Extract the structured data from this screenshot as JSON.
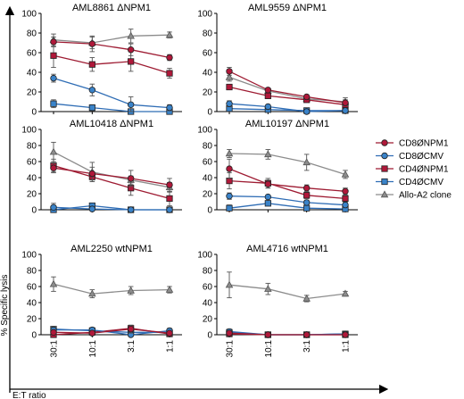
{
  "figure": {
    "ylabel": "% Specific lysis",
    "xlabel": "E:T ratio",
    "colors": {
      "red": "#9e1b32",
      "redFill": "#b0183a",
      "blue": "#2f6db5",
      "blueFill": "#3a83c9",
      "gray": "#8c8c8c"
    },
    "legend": [
      {
        "name": "CD8ØNPM1",
        "marker": "circle",
        "color": "#9e1b32"
      },
      {
        "name": "CD8ØCMV",
        "marker": "circle",
        "color": "#2f6db5"
      },
      {
        "name": "CD4ØNPM1",
        "marker": "square",
        "color": "#9e1b32"
      },
      {
        "name": "CD4ØCMV",
        "marker": "square",
        "color": "#2f6db5"
      },
      {
        "name": "Allo-A2 clone",
        "marker": "triangle",
        "color": "#8c8c8c"
      }
    ]
  },
  "chart_data": [
    {
      "type": "line",
      "title": "AML8861 ΔNPM1",
      "categories": [
        "30:1",
        "10:1",
        "3:1",
        "1:1"
      ],
      "ylim": [
        0,
        100
      ],
      "yticks": [
        0,
        20,
        40,
        60,
        80,
        100
      ],
      "series": [
        {
          "name": "CD8ØNPM1",
          "values": [
            71,
            69,
            63,
            55
          ],
          "errors": [
            5,
            8,
            6,
            3
          ]
        },
        {
          "name": "CD8ØCMV",
          "values": [
            34,
            22,
            7,
            4
          ],
          "errors": [
            4,
            6,
            8,
            3
          ]
        },
        {
          "name": "CD4ØNPM1",
          "values": [
            57,
            48,
            51,
            39
          ],
          "errors": [
            12,
            7,
            10,
            5
          ]
        },
        {
          "name": "CD4ØCMV",
          "values": [
            8,
            4,
            0,
            0
          ],
          "errors": [
            4,
            3,
            1,
            1
          ]
        },
        {
          "name": "Allo-A2 clone",
          "values": [
            73,
            70,
            77,
            78
          ],
          "errors": [
            6,
            6,
            7,
            3
          ]
        }
      ]
    },
    {
      "type": "line",
      "title": "AML9559 ΔNPM1",
      "categories": [
        "30:1",
        "10:1",
        "3:1",
        "1:1"
      ],
      "ylim": [
        0,
        100
      ],
      "yticks": [
        0,
        20,
        40,
        60,
        80,
        100
      ],
      "series": [
        {
          "name": "CD8ØNPM1",
          "values": [
            41,
            22,
            15,
            9
          ],
          "errors": [
            4,
            2,
            2,
            3
          ]
        },
        {
          "name": "CD8ØCMV",
          "values": [
            8,
            5,
            0,
            1
          ],
          "errors": [
            3,
            2,
            1,
            2
          ]
        },
        {
          "name": "CD4ØNPM1",
          "values": [
            25,
            16,
            12,
            7
          ],
          "errors": [
            2,
            2,
            2,
            2
          ]
        },
        {
          "name": "CD4ØCMV",
          "values": [
            3,
            2,
            1,
            1
          ],
          "errors": [
            2,
            1,
            1,
            1
          ]
        },
        {
          "name": "Allo-A2 clone",
          "values": [
            35,
            21,
            13,
            10
          ],
          "errors": [
            4,
            2,
            2,
            4
          ]
        }
      ]
    },
    {
      "type": "line",
      "title": "AML10418 ΔNPM1",
      "categories": [
        "30:1",
        "10:1",
        "3:1",
        "1:1"
      ],
      "ylim": [
        0,
        100
      ],
      "yticks": [
        0,
        20,
        40,
        60,
        80,
        100
      ],
      "series": [
        {
          "name": "CD8ØNPM1",
          "values": [
            52,
            45,
            39,
            31
          ],
          "errors": [
            6,
            8,
            10,
            8
          ]
        },
        {
          "name": "CD8ØCMV",
          "values": [
            3,
            1,
            0,
            0
          ],
          "errors": [
            5,
            3,
            1,
            1
          ]
        },
        {
          "name": "CD4ØNPM1",
          "values": [
            55,
            41,
            27,
            14
          ],
          "errors": [
            8,
            6,
            9,
            9
          ]
        },
        {
          "name": "CD4ØCMV",
          "values": [
            0,
            5,
            0,
            0
          ],
          "errors": [
            2,
            2,
            1,
            1
          ]
        },
        {
          "name": "Allo-A2 clone",
          "values": [
            72,
            47,
            37,
            28
          ],
          "errors": [
            12,
            12,
            5,
            6
          ]
        }
      ]
    },
    {
      "type": "line",
      "title": "AML10197 ΔNPM1",
      "categories": [
        "30:1",
        "10:1",
        "3:1",
        "1:1"
      ],
      "ylim": [
        0,
        100
      ],
      "yticks": [
        0,
        20,
        40,
        60,
        80,
        100
      ],
      "series": [
        {
          "name": "CD8ØNPM1",
          "values": [
            51,
            32,
            27,
            23
          ],
          "errors": [
            12,
            5,
            4,
            4
          ]
        },
        {
          "name": "CD8ØCMV",
          "values": [
            17,
            16,
            9,
            6
          ],
          "errors": [
            4,
            2,
            3,
            3
          ]
        },
        {
          "name": "CD4ØNPM1",
          "values": [
            36,
            33,
            18,
            14
          ],
          "errors": [
            10,
            6,
            4,
            4
          ]
        },
        {
          "name": "CD4ØCMV",
          "values": [
            2,
            8,
            2,
            1
          ],
          "errors": [
            4,
            3,
            2,
            2
          ]
        },
        {
          "name": "Allo-A2 clone",
          "values": [
            70,
            69,
            59,
            44
          ],
          "errors": [
            5,
            6,
            10,
            5
          ]
        }
      ]
    },
    {
      "type": "line",
      "title": "AML2250 wtNPM1",
      "categories": [
        "30:1",
        "10:1",
        "3:1",
        "1:1"
      ],
      "ylim": [
        0,
        100
      ],
      "yticks": [
        0,
        20,
        40,
        60,
        80,
        100
      ],
      "series": [
        {
          "name": "CD8ØNPM1",
          "values": [
            3,
            2,
            7,
            2
          ],
          "errors": [
            3,
            3,
            5,
            2
          ]
        },
        {
          "name": "CD8ØCMV",
          "values": [
            6,
            6,
            0,
            5
          ],
          "errors": [
            4,
            3,
            1,
            3
          ]
        },
        {
          "name": "CD4ØNPM1",
          "values": [
            0,
            3,
            8,
            1
          ],
          "errors": [
            2,
            2,
            3,
            1
          ]
        },
        {
          "name": "CD4ØCMV",
          "values": [
            7,
            5,
            3,
            3
          ],
          "errors": [
            3,
            2,
            2,
            2
          ]
        },
        {
          "name": "Allo-A2 clone",
          "values": [
            63,
            51,
            55,
            56
          ],
          "errors": [
            9,
            5,
            5,
            4
          ]
        }
      ]
    },
    {
      "type": "line",
      "title": "AML4716 wtNPM1",
      "categories": [
        "30:1",
        "10:1",
        "3:1",
        "1:1"
      ],
      "ylim": [
        0,
        100
      ],
      "yticks": [
        0,
        20,
        40,
        60,
        80,
        100
      ],
      "series": [
        {
          "name": "CD8ØNPM1",
          "values": [
            2,
            0,
            0,
            0
          ],
          "errors": [
            3,
            1,
            1,
            1
          ]
        },
        {
          "name": "CD8ØCMV",
          "values": [
            4,
            0,
            0,
            1
          ],
          "errors": [
            3,
            1,
            1,
            1
          ]
        },
        {
          "name": "CD4ØNPM1",
          "values": [
            1,
            0,
            0,
            0
          ],
          "errors": [
            2,
            1,
            1,
            1
          ]
        },
        {
          "name": "CD4ØCMV",
          "values": [
            3,
            0,
            0,
            1
          ],
          "errors": [
            2,
            1,
            1,
            1
          ]
        },
        {
          "name": "Allo-A2 clone",
          "values": [
            62,
            57,
            45,
            51
          ],
          "errors": [
            16,
            7,
            4,
            3
          ]
        }
      ]
    }
  ]
}
